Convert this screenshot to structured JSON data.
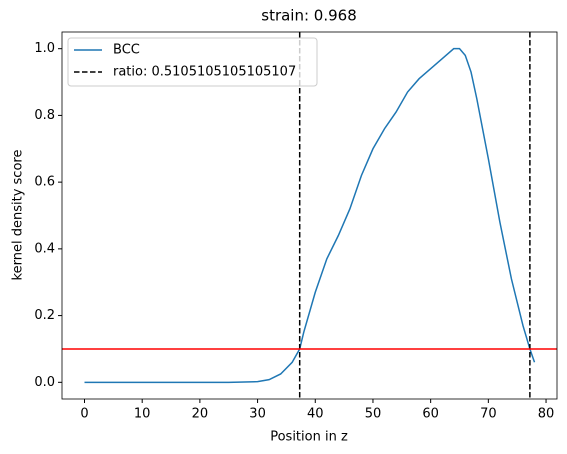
{
  "chart_data": {
    "type": "line",
    "title": "strain: 0.968",
    "xlabel": "Position in z",
    "ylabel": "kernel density score",
    "x": [
      0,
      5,
      10,
      15,
      20,
      25,
      30,
      32,
      34,
      36,
      37.3,
      38,
      40,
      42,
      44,
      46,
      48,
      50,
      52,
      54,
      56,
      58,
      60,
      62,
      64,
      65,
      66,
      67,
      68,
      70,
      72,
      74,
      76,
      77.2,
      78
    ],
    "series": [
      {
        "name": "BCC",
        "color": "#1f77b4",
        "values": [
          0,
          0,
          0,
          0,
          0,
          0,
          0.002,
          0.008,
          0.025,
          0.06,
          0.1,
          0.15,
          0.27,
          0.37,
          0.44,
          0.52,
          0.62,
          0.7,
          0.76,
          0.81,
          0.87,
          0.91,
          0.94,
          0.97,
          1.0,
          1.0,
          0.98,
          0.93,
          0.85,
          0.67,
          0.48,
          0.31,
          0.17,
          0.1,
          0.06
        ]
      }
    ],
    "vlines": {
      "name": "ratio: 0.5105105105105107",
      "color": "#000000",
      "x": [
        37.3,
        77.2
      ]
    },
    "hline": {
      "y": 0.1,
      "color": "#ff0000"
    },
    "xlim": [
      -3.9,
      81.9
    ],
    "ylim": [
      -0.05,
      1.05
    ],
    "xticks": [
      0,
      10,
      20,
      30,
      40,
      50,
      60,
      70,
      80
    ],
    "yticks": [
      {
        "value": 0,
        "label": "0.0"
      },
      0.2,
      0.4,
      0.6,
      0.8,
      {
        "value": 1,
        "label": "1.0"
      }
    ],
    "legend": "upper left"
  }
}
